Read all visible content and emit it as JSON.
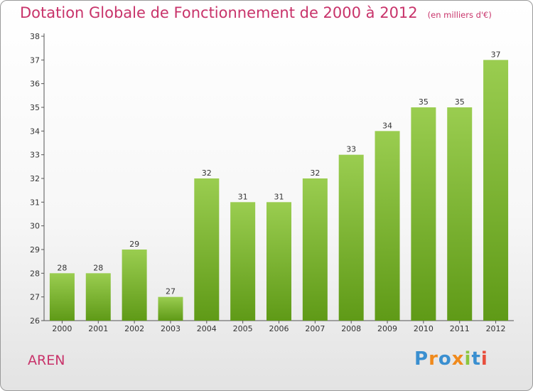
{
  "title": "Dotation Globale de Fonctionnement de 2000 à 2012",
  "subtitle": "(en milliers d'€)",
  "commune": "AREN",
  "logo": "Proxiti",
  "colors": {
    "title": "#c8336a",
    "bar_top": "#9acd50",
    "bar_bottom": "#5f9a17",
    "logo_blue": "#3a8fd0",
    "logo_orange": "#f08a1c"
  },
  "chart_data": {
    "type": "bar",
    "title": "Dotation Globale de Fonctionnement de 2000 à 2012",
    "subtitle": "(en milliers d'€)",
    "xlabel": "",
    "ylabel": "",
    "categories": [
      "2000",
      "2001",
      "2002",
      "2003",
      "2004",
      "2005",
      "2006",
      "2007",
      "2008",
      "2009",
      "2010",
      "2011",
      "2012"
    ],
    "values": [
      28,
      28,
      29,
      27,
      32,
      31,
      31,
      32,
      33,
      34,
      35,
      35,
      37
    ],
    "ylim": [
      26,
      38
    ],
    "yticks": [
      26,
      27,
      28,
      29,
      30,
      31,
      32,
      33,
      34,
      35,
      36,
      37,
      38
    ],
    "grid": false,
    "legend": "none"
  }
}
